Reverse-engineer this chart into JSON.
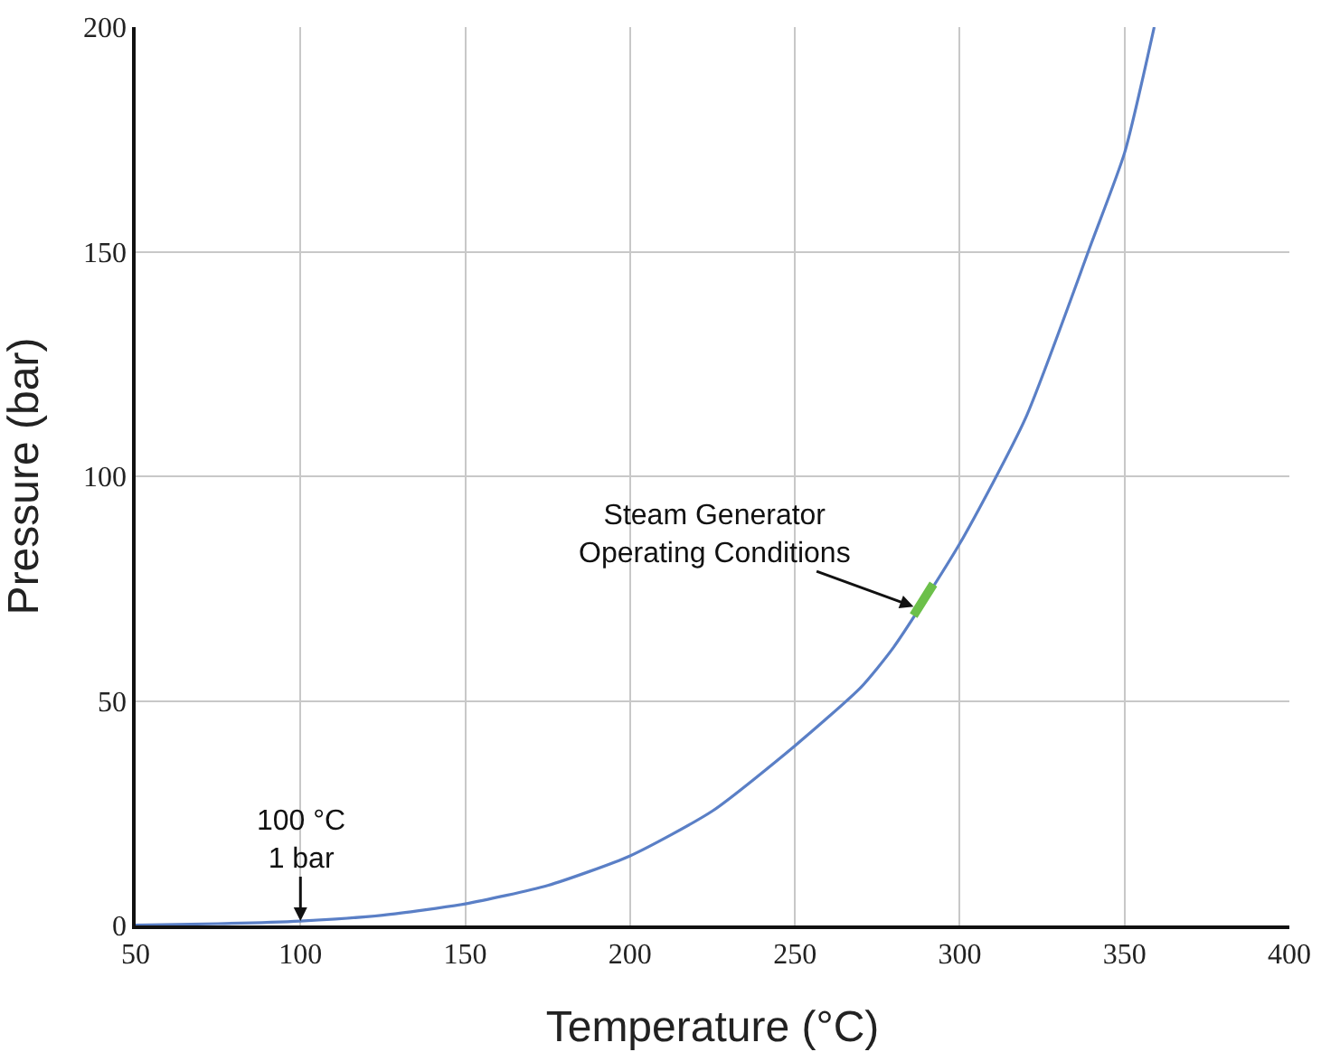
{
  "chart_data": {
    "type": "line",
    "xlabel": "Temperature (°C)",
    "ylabel": "Pressure (bar)",
    "xlim": [
      50,
      400
    ],
    "xticks": [
      50,
      100,
      150,
      200,
      250,
      300,
      350,
      400
    ],
    "ylim": [
      0,
      200
    ],
    "yticks": [
      0,
      50,
      100,
      150,
      200
    ],
    "grid": true,
    "marker": "none",
    "line_style": "solid",
    "series": [
      {
        "color": "#5a7fc6",
        "x": [
          50,
          75,
          100,
          125,
          150,
          175,
          200,
          225,
          250,
          270,
          280,
          300,
          320,
          340,
          350,
          359
        ],
        "values": [
          0.1,
          0.4,
          1,
          2.3,
          4.8,
          8.9,
          15.5,
          25.5,
          40,
          53,
          62,
          85,
          113,
          152,
          172,
          200
        ]
      },
      {
        "color": "#6cc04a",
        "x": [
          286,
          289,
          292
        ],
        "values": [
          69,
          72.5,
          76
        ]
      }
    ],
    "annotations": [
      {
        "text": "Steam Generator\nOperating Conditions",
        "x": 286,
        "y": 71
      },
      {
        "text": "100 °C\n1 bar",
        "x": 100,
        "y": 1
      }
    ]
  }
}
